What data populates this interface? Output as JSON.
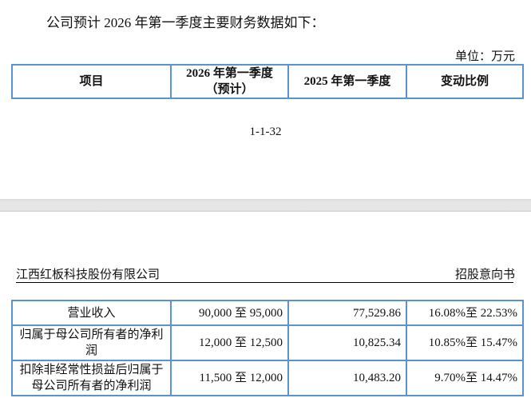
{
  "intro": "公司预计 2026 年第一季度主要财务数据如下：",
  "unit": "单位：万元",
  "header": {
    "col1": "项目",
    "col2_line1": "2026 年第一季度",
    "col2_line2": "（预计）",
    "col3": "2025 年第一季度",
    "col4": "变动比例"
  },
  "page_number": "1-1-32",
  "running_header": {
    "company": "江西红板科技股份有限公司",
    "doc_type": "招股意向书"
  },
  "rows": [
    {
      "item": "营业收入",
      "forecast": "90,000 至 95,000",
      "prior": "77,529.86",
      "change": "16.08%至 22.53%"
    },
    {
      "item": "归属于母公司所有者的净利润",
      "forecast": "12,000 至 12,500",
      "prior": "10,825.34",
      "change": "10.85%至 15.47%"
    },
    {
      "item": "扣除非经常性损益后归属于母公司所有者的净利润",
      "forecast": "11,500 至 12,000",
      "prior": "10,483.20",
      "change": "9.70%至 14.47%"
    }
  ],
  "colors": {
    "table_border": "#5b93cf"
  }
}
